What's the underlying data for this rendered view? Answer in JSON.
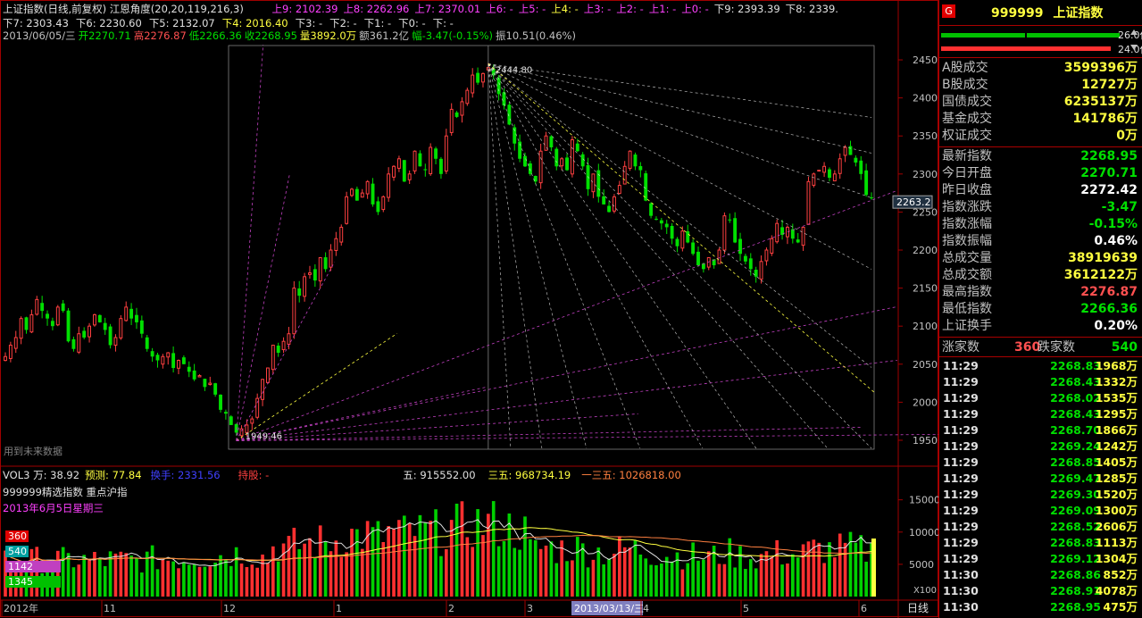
{
  "header": {
    "row1": {
      "title": "上证指数(日线,前复权) 江恩角度(20,20,119,216,3)",
      "levels": [
        {
          "label": "上9: 2102.39",
          "color": "#ff40ff"
        },
        {
          "label": "上8: 2262.96",
          "color": "#ff40ff"
        },
        {
          "label": "上7: 2370.01",
          "color": "#ff40ff"
        },
        {
          "label": "上6: -",
          "color": "#ff40ff"
        },
        {
          "label": "上5: -",
          "color": "#ff40ff"
        },
        {
          "label": "上4: -",
          "color": "#ffff40"
        },
        {
          "label": "上3: -",
          "color": "#ff40ff"
        },
        {
          "label": "上2: -",
          "color": "#ff40ff"
        },
        {
          "label": "上1: -",
          "color": "#ff40ff"
        },
        {
          "label": "上0: -",
          "color": "#ff40ff"
        },
        {
          "label": "下9: 2393.39",
          "color": "#e0e0e0"
        },
        {
          "label": "下8: 2339.",
          "color": "#e0e0e0"
        }
      ]
    },
    "row2": [
      {
        "label": "下7: 2303.43",
        "color": "#e0e0e0"
      },
      {
        "label": "下6: 2230.60",
        "color": "#e0e0e0"
      },
      {
        "label": "下5: 2132.07",
        "color": "#e0e0e0"
      },
      {
        "label": "下4: 2016.40",
        "color": "#ffff40"
      },
      {
        "label": "下3: -",
        "color": "#e0e0e0"
      },
      {
        "label": "下2: -",
        "color": "#e0e0e0"
      },
      {
        "label": "下1: -",
        "color": "#e0e0e0"
      },
      {
        "label": "下0: -",
        "color": "#e0e0e0"
      },
      {
        "label": "下: -",
        "color": "#e0e0e0"
      }
    ],
    "row3": [
      {
        "label": "2013/06/05/三",
        "color": "#c0c0c0"
      },
      {
        "label": "开2270.71",
        "color": "#00e000"
      },
      {
        "label": "高2276.87",
        "color": "#ff5050"
      },
      {
        "label": "低2266.36",
        "color": "#00e000"
      },
      {
        "label": "收2268.95",
        "color": "#00e000"
      },
      {
        "label": "量3892.0万",
        "color": "#ffff40"
      },
      {
        "label": "额361.2亿",
        "color": "#c0c0c0"
      },
      {
        "label": "幅-3.47(-0.15%)",
        "color": "#00e000"
      },
      {
        "label": "振10.51(0.46%)",
        "color": "#c0c0c0"
      }
    ]
  },
  "annotations": {
    "peak_label": "2444.80",
    "low_label": "1949.46",
    "current_price_tag": "2263.2",
    "future_data_label": "用到未来数据"
  },
  "volume_panel": {
    "header": [
      {
        "label": "VOL3 万: 38.92",
        "color": "#e0e0e0"
      },
      {
        "label": "预测: 77.84",
        "color": "#ffff40"
      },
      {
        "label": "换手: 2331.56",
        "color": "#4040ff"
      },
      {
        "label": "持股: -",
        "color": "#ff4040"
      },
      {
        "label": "五: 915552.00",
        "color": "#e0e0e0"
      },
      {
        "label": "三五: 968734.19",
        "color": "#ffff40"
      },
      {
        "label": "一三五: 1026818.00",
        "color": "#ff8040"
      }
    ],
    "subtitle1": "999999精选指数 重点沪指",
    "subtitle2": "2013年6月5日星期三",
    "badges": [
      {
        "label": "360",
        "color": "#e00000"
      },
      {
        "label": "540",
        "color": "#00a0a0"
      },
      {
        "label": "1142",
        "color": "#c040c0"
      },
      {
        "label": "1345",
        "color": "#00c000"
      }
    ],
    "unit_label": "X100"
  },
  "xaxis": {
    "labels": [
      "2012年",
      "11",
      "12",
      "1",
      "2",
      "3",
      "2013/03/13/三",
      "4",
      "5",
      "6"
    ],
    "period": "日线"
  },
  "right_panel": {
    "code": "999999",
    "name": "上证指数",
    "bar_labels": [
      "26.0亿",
      "24.0亿"
    ],
    "block1": [
      {
        "label": "A股成交",
        "value": "3599396万",
        "color": "#ffff40"
      },
      {
        "label": "B股成交",
        "value": "12727万",
        "color": "#ffff40"
      },
      {
        "label": "国债成交",
        "value": "6235137万",
        "color": "#ffff40"
      },
      {
        "label": "基金成交",
        "value": "141786万",
        "color": "#ffff40"
      },
      {
        "label": "权证成交",
        "value": "0万",
        "color": "#ffff40"
      }
    ],
    "block2": [
      {
        "label": "最新指数",
        "value": "2268.95",
        "color": "#00e000"
      },
      {
        "label": "今日开盘",
        "value": "2270.71",
        "color": "#00e000"
      },
      {
        "label": "昨日收盘",
        "value": "2272.42",
        "color": "#ffffff"
      },
      {
        "label": "指数涨跌",
        "value": "-3.47",
        "color": "#00e000"
      },
      {
        "label": "指数涨幅",
        "value": "-0.15%",
        "color": "#00e000"
      },
      {
        "label": "指数振幅",
        "value": "0.46%",
        "color": "#ffffff"
      },
      {
        "label": "总成交量",
        "value": "38919639",
        "color": "#ffff40"
      },
      {
        "label": "总成交额",
        "value": "3612122万",
        "color": "#ffff40"
      },
      {
        "label": "最高指数",
        "value": "2276.87",
        "color": "#ff5050"
      },
      {
        "label": "最低指数",
        "value": "2266.36",
        "color": "#00e000"
      },
      {
        "label": "上证换手",
        "value": "0.20%",
        "color": "#ffffff"
      }
    ],
    "advance": {
      "up_label": "涨家数",
      "up_value": "360",
      "down_label": "跌家数",
      "down_value": "540"
    },
    "ticks": [
      {
        "time": "11:29",
        "price": "2268.83",
        "vol": "1968万"
      },
      {
        "time": "11:29",
        "price": "2268.43",
        "vol": "1332万"
      },
      {
        "time": "11:29",
        "price": "2268.02",
        "vol": "1535万"
      },
      {
        "time": "11:29",
        "price": "2268.43",
        "vol": "1295万"
      },
      {
        "time": "11:29",
        "price": "2268.70",
        "vol": "1866万"
      },
      {
        "time": "11:29",
        "price": "2269.24",
        "vol": "1242万"
      },
      {
        "time": "11:29",
        "price": "2268.85",
        "vol": "1405万"
      },
      {
        "time": "11:29",
        "price": "2269.47",
        "vol": "1285万"
      },
      {
        "time": "11:29",
        "price": "2269.30",
        "vol": "1520万"
      },
      {
        "time": "11:29",
        "price": "2269.09",
        "vol": "1300万"
      },
      {
        "time": "11:29",
        "price": "2268.52",
        "vol": "2606万"
      },
      {
        "time": "11:29",
        "price": "2268.83",
        "vol": "1113万"
      },
      {
        "time": "11:29",
        "price": "2269.12",
        "vol": "1304万"
      },
      {
        "time": "11:30",
        "price": "2268.86",
        "vol": "852万"
      },
      {
        "time": "11:30",
        "price": "2268.91",
        "vol": "4078万"
      },
      {
        "time": "11:30",
        "price": "2268.95",
        "vol": "475万"
      }
    ]
  },
  "chart_data": [
    {
      "type": "candlestick",
      "title": "上证指数(日线,前复权)",
      "x_range": [
        "2012年",
        "2013/06/05"
      ],
      "ylim": [
        1930,
        2470
      ],
      "yticks": [
        1950,
        2000,
        2050,
        2100,
        2150,
        2200,
        2250,
        2300,
        2350,
        2400,
        2450
      ],
      "grid": false,
      "key_points": [
        {
          "label": "low",
          "value": 1949.46
        },
        {
          "label": "peak",
          "value": 2444.8
        },
        {
          "label": "last_close",
          "value": 2268.95
        }
      ],
      "gann_fans": [
        {
          "origin": "low",
          "origin_value": 1949.46,
          "direction": "up"
        },
        {
          "origin": "peak",
          "origin_value": 2444.8,
          "direction": "down"
        }
      ],
      "closes": [
        2060,
        2075,
        2085,
        2110,
        2095,
        2115,
        2135,
        2120,
        2110,
        2100,
        2125,
        2120,
        2080,
        2070,
        2090,
        2085,
        2100,
        2115,
        2105,
        2095,
        2075,
        2085,
        2110,
        2125,
        2110,
        2105,
        2090,
        2070,
        2060,
        2055,
        2060,
        2065,
        2045,
        2055,
        2050,
        2040,
        2030,
        2035,
        2020,
        2025,
        2010,
        1990,
        1985,
        1970,
        1960,
        1965,
        1970,
        1978,
        2005,
        2030,
        2045,
        2075,
        2065,
        2080,
        2090,
        2150,
        2140,
        2165,
        2170,
        2160,
        2190,
        2175,
        2200,
        2215,
        2230,
        2270,
        2280,
        2265,
        2275,
        2290,
        2260,
        2250,
        2270,
        2300,
        2310,
        2320,
        2290,
        2300,
        2330,
        2310,
        2305,
        2335,
        2320,
        2300,
        2350,
        2385,
        2375,
        2395,
        2410,
        2430,
        2420,
        2432,
        2440,
        2430,
        2405,
        2390,
        2365,
        2340,
        2320,
        2310,
        2300,
        2290,
        2330,
        2350,
        2335,
        2310,
        2320,
        2305,
        2345,
        2330,
        2310,
        2280,
        2300,
        2270,
        2260,
        2250,
        2270,
        2285,
        2310,
        2330,
        2310,
        2305,
        2265,
        2245,
        2240,
        2235,
        2230,
        2215,
        2205,
        2225,
        2210,
        2195,
        2180,
        2175,
        2190,
        2180,
        2200,
        2245,
        2240,
        2210,
        2195,
        2185,
        2175,
        2165,
        2185,
        2200,
        2215,
        2235,
        2220,
        2230,
        2215,
        2210,
        2230,
        2290,
        2300,
        2305,
        2310,
        2295,
        2300,
        2320,
        2335,
        2325,
        2315,
        2300,
        2272.42,
        2268.95
      ]
    },
    {
      "type": "bar",
      "title": "VOL3",
      "ylabel": "X100",
      "ylim": [
        0,
        18000
      ],
      "yticks": [
        5000,
        10000,
        15000
      ],
      "series": [
        {
          "name": "VOL3"
        }
      ]
    }
  ]
}
